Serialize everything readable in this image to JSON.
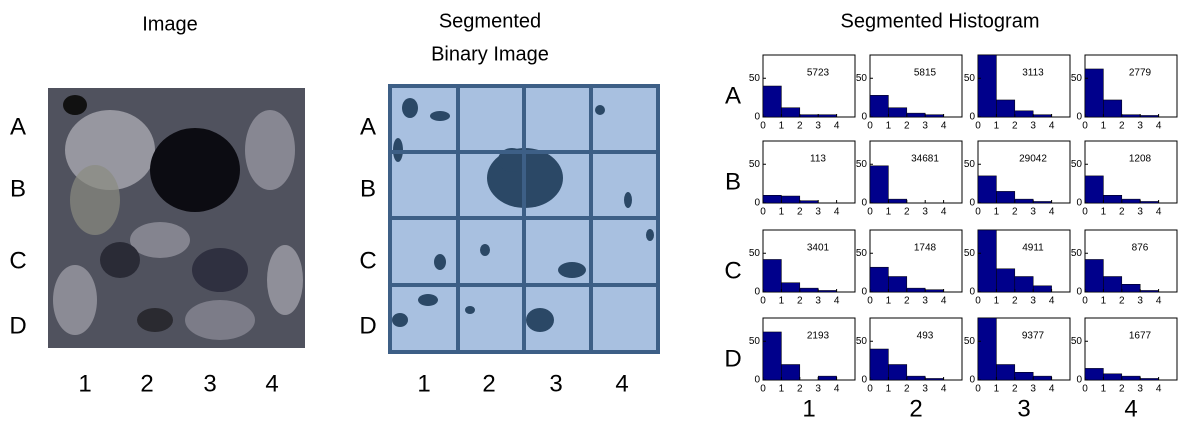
{
  "image_panel": {
    "title": "Image"
  },
  "binary_panel": {
    "title_lines": [
      "Segmented",
      "Binary Image"
    ]
  },
  "histogram_panel": {
    "title": "Segmented Histogram"
  },
  "rows": [
    "A",
    "B",
    "C",
    "D"
  ],
  "columns": [
    "1",
    "2",
    "3",
    "4"
  ],
  "chart_data": [
    {
      "type": "histogram",
      "bins": [
        0,
        1,
        2,
        3,
        4
      ],
      "values": [
        40,
        12,
        3,
        3
      ],
      "annotation": 5723,
      "color": "#00008b",
      "xlim": [
        0,
        5
      ],
      "ylim": [
        0,
        80
      ],
      "xticks": [
        0,
        1,
        2,
        3,
        4
      ],
      "yticks": [
        0,
        50
      ]
    },
    {
      "type": "histogram",
      "bins": [
        0,
        1,
        2,
        3,
        4
      ],
      "values": [
        28,
        12,
        5,
        3
      ],
      "annotation": 5815,
      "color": "#00008b",
      "xlim": [
        0,
        5
      ],
      "ylim": [
        0,
        80
      ],
      "xticks": [
        0,
        1,
        2,
        3,
        4
      ],
      "yticks": [
        0,
        50
      ]
    },
    {
      "type": "histogram",
      "bins": [
        0,
        1,
        2,
        3,
        4
      ],
      "values": [
        80,
        22,
        8,
        3
      ],
      "annotation": 3113,
      "color": "#00008b",
      "xlim": [
        0,
        5
      ],
      "ylim": [
        0,
        80
      ],
      "xticks": [
        0,
        1,
        2,
        3,
        4
      ],
      "yticks": [
        0,
        50
      ]
    },
    {
      "type": "histogram",
      "bins": [
        0,
        1,
        2,
        3,
        4
      ],
      "values": [
        62,
        22,
        3,
        2
      ],
      "annotation": 2779,
      "color": "#00008b",
      "xlim": [
        0,
        5
      ],
      "ylim": [
        0,
        80
      ],
      "xticks": [
        0,
        1,
        2,
        3,
        4
      ],
      "yticks": [
        0,
        50
      ]
    },
    {
      "type": "histogram",
      "bins": [
        0,
        1,
        2,
        3,
        4
      ],
      "values": [
        10,
        9,
        3,
        0
      ],
      "annotation": 113,
      "color": "#00008b",
      "xlim": [
        0,
        5
      ],
      "ylim": [
        0,
        80
      ],
      "xticks": [
        0,
        1,
        2,
        3,
        4
      ],
      "yticks": [
        0,
        50
      ]
    },
    {
      "type": "histogram",
      "bins": [
        0,
        1,
        2,
        3,
        4
      ],
      "values": [
        48,
        5,
        0,
        0
      ],
      "annotation": 34681,
      "color": "#00008b",
      "xlim": [
        0,
        5
      ],
      "ylim": [
        0,
        80
      ],
      "xticks": [
        0,
        1,
        2,
        3,
        4
      ],
      "yticks": [
        0,
        50
      ]
    },
    {
      "type": "histogram",
      "bins": [
        0,
        1,
        2,
        3,
        4
      ],
      "values": [
        35,
        15,
        5,
        2
      ],
      "annotation": 29042,
      "color": "#00008b",
      "xlim": [
        0,
        5
      ],
      "ylim": [
        0,
        80
      ],
      "xticks": [
        0,
        1,
        2,
        3,
        4
      ],
      "yticks": [
        0,
        50
      ]
    },
    {
      "type": "histogram",
      "bins": [
        0,
        1,
        2,
        3,
        4
      ],
      "values": [
        35,
        10,
        5,
        2
      ],
      "annotation": 1208,
      "color": "#00008b",
      "xlim": [
        0,
        5
      ],
      "ylim": [
        0,
        80
      ],
      "xticks": [
        0,
        1,
        2,
        3,
        4
      ],
      "yticks": [
        0,
        50
      ]
    },
    {
      "type": "histogram",
      "bins": [
        0,
        1,
        2,
        3,
        4
      ],
      "values": [
        42,
        12,
        5,
        2
      ],
      "annotation": 3401,
      "color": "#00008b",
      "xlim": [
        0,
        5
      ],
      "ylim": [
        0,
        80
      ],
      "xticks": [
        0,
        1,
        2,
        3,
        4
      ],
      "yticks": [
        0,
        50
      ]
    },
    {
      "type": "histogram",
      "bins": [
        0,
        1,
        2,
        3,
        4
      ],
      "values": [
        32,
        20,
        5,
        3
      ],
      "annotation": 1748,
      "color": "#00008b",
      "xlim": [
        0,
        5
      ],
      "ylim": [
        0,
        80
      ],
      "xticks": [
        0,
        1,
        2,
        3,
        4
      ],
      "yticks": [
        0,
        50
      ]
    },
    {
      "type": "histogram",
      "bins": [
        0,
        1,
        2,
        3,
        4
      ],
      "values": [
        80,
        30,
        20,
        8
      ],
      "annotation": 4911,
      "color": "#00008b",
      "xlim": [
        0,
        5
      ],
      "ylim": [
        0,
        80
      ],
      "xticks": [
        0,
        1,
        2,
        3,
        4
      ],
      "yticks": [
        0,
        50
      ]
    },
    {
      "type": "histogram",
      "bins": [
        0,
        1,
        2,
        3,
        4
      ],
      "values": [
        42,
        20,
        10,
        2
      ],
      "annotation": 876,
      "color": "#00008b",
      "xlim": [
        0,
        5
      ],
      "ylim": [
        0,
        80
      ],
      "xticks": [
        0,
        1,
        2,
        3,
        4
      ],
      "yticks": [
        0,
        50
      ]
    },
    {
      "type": "histogram",
      "bins": [
        0,
        1,
        2,
        3,
        4
      ],
      "values": [
        62,
        20,
        0,
        5
      ],
      "annotation": 2193,
      "color": "#00008b",
      "xlim": [
        0,
        5
      ],
      "ylim": [
        0,
        80
      ],
      "xticks": [
        0,
        1,
        2,
        3,
        4
      ],
      "yticks": [
        0,
        50
      ]
    },
    {
      "type": "histogram",
      "bins": [
        0,
        1,
        2,
        3,
        4
      ],
      "values": [
        40,
        20,
        5,
        2
      ],
      "annotation": 493,
      "color": "#00008b",
      "xlim": [
        0,
        5
      ],
      "ylim": [
        0,
        80
      ],
      "xticks": [
        0,
        1,
        2,
        3,
        4
      ],
      "yticks": [
        0,
        50
      ]
    },
    {
      "type": "histogram",
      "bins": [
        0,
        1,
        2,
        3,
        4
      ],
      "values": [
        80,
        20,
        10,
        5
      ],
      "annotation": 9377,
      "color": "#00008b",
      "xlim": [
        0,
        5
      ],
      "ylim": [
        0,
        80
      ],
      "xticks": [
        0,
        1,
        2,
        3,
        4
      ],
      "yticks": [
        0,
        50
      ]
    },
    {
      "type": "histogram",
      "bins": [
        0,
        1,
        2,
        3,
        4
      ],
      "values": [
        15,
        8,
        5,
        2
      ],
      "annotation": 1677,
      "color": "#00008b",
      "xlim": [
        0,
        5
      ],
      "ylim": [
        0,
        80
      ],
      "xticks": [
        0,
        1,
        2,
        3,
        4
      ],
      "yticks": [
        0,
        50
      ]
    }
  ]
}
